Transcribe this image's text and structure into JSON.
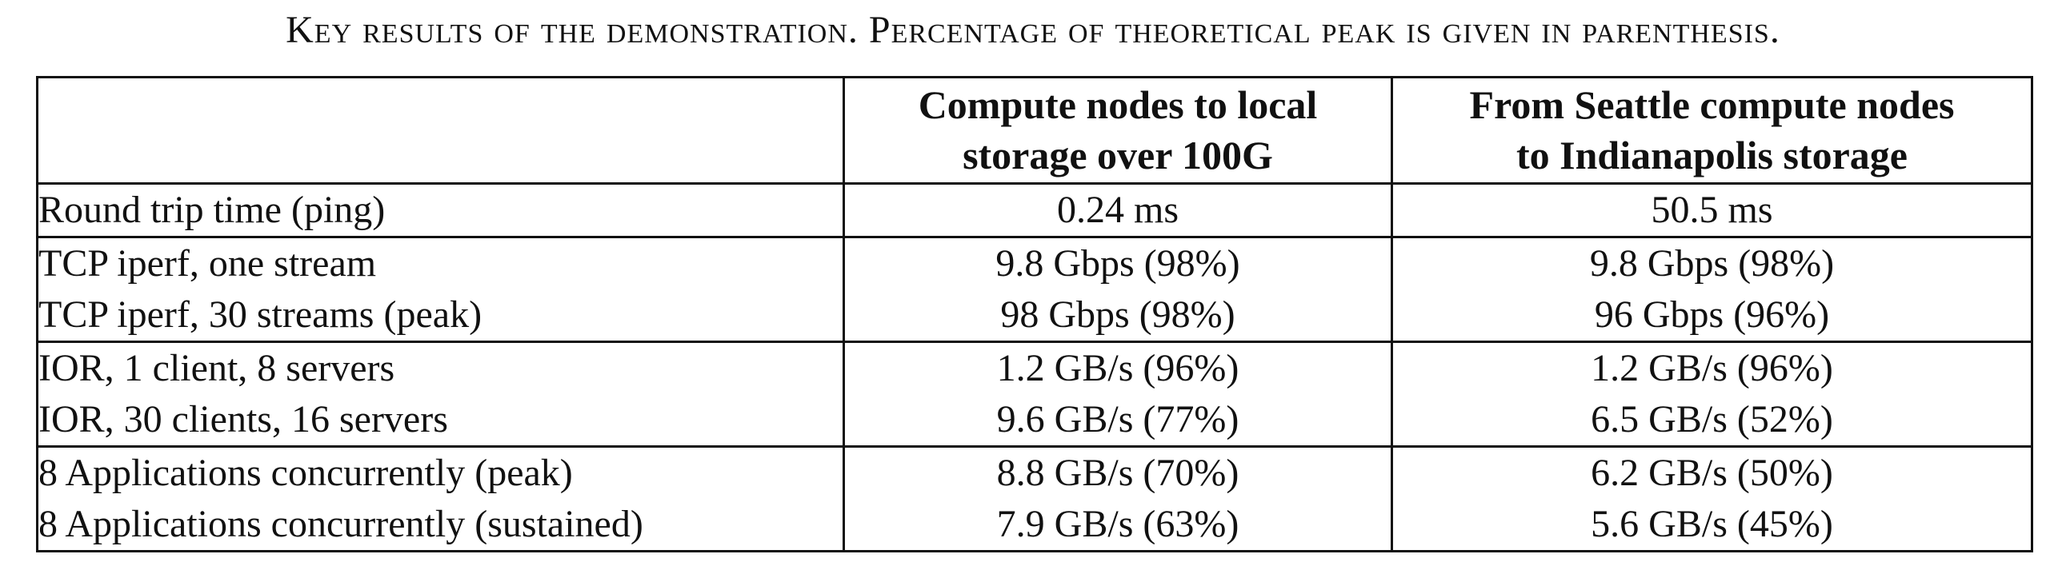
{
  "caption": "Key results of the demonstration. Percentage of theoretical peak is given in parenthesis.",
  "table": {
    "headers": [
      "",
      [
        "Compute nodes to local",
        "storage over 100G"
      ],
      [
        "From Seattle compute nodes",
        "to Indianapolis storage"
      ]
    ],
    "groups": [
      {
        "rows": [
          {
            "label": "Round trip time (ping)",
            "local": "0.24 ms",
            "remote": "50.5 ms"
          }
        ]
      },
      {
        "rows": [
          {
            "label": "TCP iperf, one stream",
            "local": "9.8 Gbps (98%)",
            "remote": "9.8 Gbps (98%)"
          },
          {
            "label": "TCP iperf, 30 streams (peak)",
            "local": "98 Gbps (98%)",
            "remote": "96 Gbps (96%)"
          }
        ]
      },
      {
        "rows": [
          {
            "label": "IOR, 1 client, 8 servers",
            "local": "1.2 GB/s (96%)",
            "remote": "1.2 GB/s (96%)"
          },
          {
            "label": "IOR, 30 clients, 16 servers",
            "local": "9.6 GB/s (77%)",
            "remote": "6.5 GB/s (52%)"
          }
        ]
      },
      {
        "rows": [
          {
            "label": "8 Applications concurrently (peak)",
            "local": "8.8 GB/s (70%)",
            "remote": "6.2 GB/s (50%)"
          },
          {
            "label": "8 Applications concurrently (sustained)",
            "local": "7.9 GB/s (63%)",
            "remote": "5.6 GB/s (45%)"
          }
        ]
      }
    ]
  }
}
